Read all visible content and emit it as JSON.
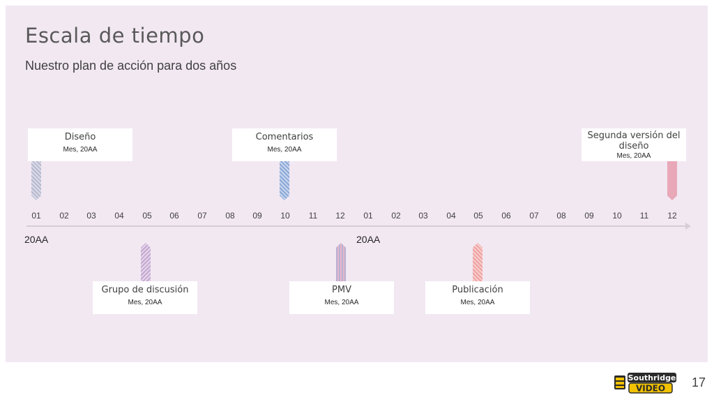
{
  "header": {
    "title": "Escala de tiempo",
    "subtitle": "Nuestro plan de acción para dos años"
  },
  "timeline": {
    "months": [
      "01",
      "02",
      "03",
      "04",
      "05",
      "06",
      "07",
      "08",
      "09",
      "10",
      "11",
      "12",
      "01",
      "02",
      "03",
      "04",
      "05",
      "06",
      "07",
      "08",
      "09",
      "10",
      "11",
      "12"
    ],
    "years": [
      "20AA",
      "20AA"
    ],
    "milestones": {
      "diseno": {
        "title": "Diseño",
        "date": "Mes, 20AA"
      },
      "comentarios": {
        "title": "Comentarios",
        "date": "Mes, 20AA"
      },
      "segunda": {
        "title": "Segunda versión del diseño",
        "date": "Mes, 20AA"
      },
      "grupo": {
        "title": "Grupo de discusión",
        "date": "Mes, 20AA"
      },
      "pmv": {
        "title": "PMV",
        "date": "Mes, 20AA"
      },
      "publicacion": {
        "title": "Publicación",
        "date": "Mes, 20AA"
      }
    }
  },
  "footer": {
    "logo_line1": "Southridge",
    "logo_line2": "VIDEO",
    "page_number": "17"
  }
}
